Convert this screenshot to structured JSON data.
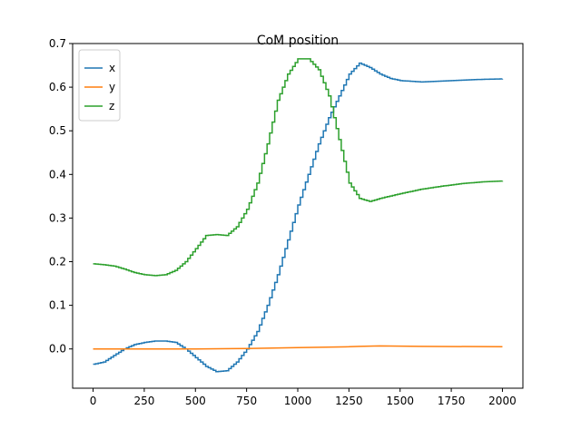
{
  "chart_data": {
    "type": "line",
    "title": "CoM position",
    "xlabel": "",
    "ylabel": "",
    "xlim": [
      -100,
      2100
    ],
    "ylim": [
      -0.09,
      0.7
    ],
    "xticks": [
      0,
      250,
      500,
      750,
      1000,
      1250,
      1500,
      1750,
      2000
    ],
    "yticks": [
      0.0,
      0.1,
      0.2,
      0.3,
      0.4,
      0.5,
      0.6,
      0.7
    ],
    "ytick_labels": [
      "0.0",
      "0.1",
      "0.2",
      "0.3",
      "0.4",
      "0.5",
      "0.6",
      "0.7"
    ],
    "grid": false,
    "legend_position": "upper-left",
    "series": [
      {
        "name": "x",
        "color": "#1f77b4",
        "step": true,
        "points": [
          [
            0,
            -0.035
          ],
          [
            50,
            -0.03
          ],
          [
            100,
            -0.015
          ],
          [
            150,
            0.0
          ],
          [
            200,
            0.01
          ],
          [
            250,
            0.015
          ],
          [
            300,
            0.018
          ],
          [
            350,
            0.018
          ],
          [
            400,
            0.015
          ],
          [
            450,
            0.0
          ],
          [
            500,
            -0.02
          ],
          [
            550,
            -0.04
          ],
          [
            600,
            -0.052
          ],
          [
            650,
            -0.05
          ],
          [
            700,
            -0.03
          ],
          [
            750,
            0.0
          ],
          [
            800,
            0.04
          ],
          [
            850,
            0.1
          ],
          [
            900,
            0.17
          ],
          [
            950,
            0.25
          ],
          [
            1000,
            0.33
          ],
          [
            1050,
            0.4
          ],
          [
            1100,
            0.47
          ],
          [
            1150,
            0.53
          ],
          [
            1200,
            0.58
          ],
          [
            1250,
            0.63
          ],
          [
            1300,
            0.655
          ],
          [
            1350,
            0.645
          ],
          [
            1400,
            0.63
          ],
          [
            1450,
            0.62
          ],
          [
            1500,
            0.615
          ],
          [
            1600,
            0.612
          ],
          [
            1700,
            0.614
          ],
          [
            1800,
            0.616
          ],
          [
            1900,
            0.618
          ],
          [
            2000,
            0.619
          ]
        ]
      },
      {
        "name": "y",
        "color": "#ff7f0e",
        "step": false,
        "points": [
          [
            0,
            0.0
          ],
          [
            200,
            0.0
          ],
          [
            500,
            0.0
          ],
          [
            750,
            0.001
          ],
          [
            1000,
            0.003
          ],
          [
            1250,
            0.005
          ],
          [
            1300,
            0.006
          ],
          [
            1400,
            0.007
          ],
          [
            1600,
            0.006
          ],
          [
            2000,
            0.005
          ]
        ]
      },
      {
        "name": "z",
        "color": "#2ca02c",
        "step": true,
        "points": [
          [
            0,
            0.195
          ],
          [
            50,
            0.193
          ],
          [
            100,
            0.19
          ],
          [
            150,
            0.183
          ],
          [
            200,
            0.175
          ],
          [
            250,
            0.17
          ],
          [
            300,
            0.168
          ],
          [
            350,
            0.17
          ],
          [
            400,
            0.18
          ],
          [
            450,
            0.2
          ],
          [
            500,
            0.23
          ],
          [
            550,
            0.26
          ],
          [
            600,
            0.262
          ],
          [
            650,
            0.26
          ],
          [
            700,
            0.28
          ],
          [
            750,
            0.32
          ],
          [
            800,
            0.38
          ],
          [
            850,
            0.47
          ],
          [
            900,
            0.57
          ],
          [
            950,
            0.63
          ],
          [
            1000,
            0.665
          ],
          [
            1050,
            0.665
          ],
          [
            1100,
            0.64
          ],
          [
            1150,
            0.58
          ],
          [
            1200,
            0.48
          ],
          [
            1250,
            0.38
          ],
          [
            1300,
            0.345
          ],
          [
            1350,
            0.338
          ],
          [
            1400,
            0.345
          ],
          [
            1500,
            0.356
          ],
          [
            1600,
            0.366
          ],
          [
            1700,
            0.373
          ],
          [
            1800,
            0.379
          ],
          [
            1900,
            0.383
          ],
          [
            2000,
            0.385
          ]
        ]
      }
    ]
  }
}
